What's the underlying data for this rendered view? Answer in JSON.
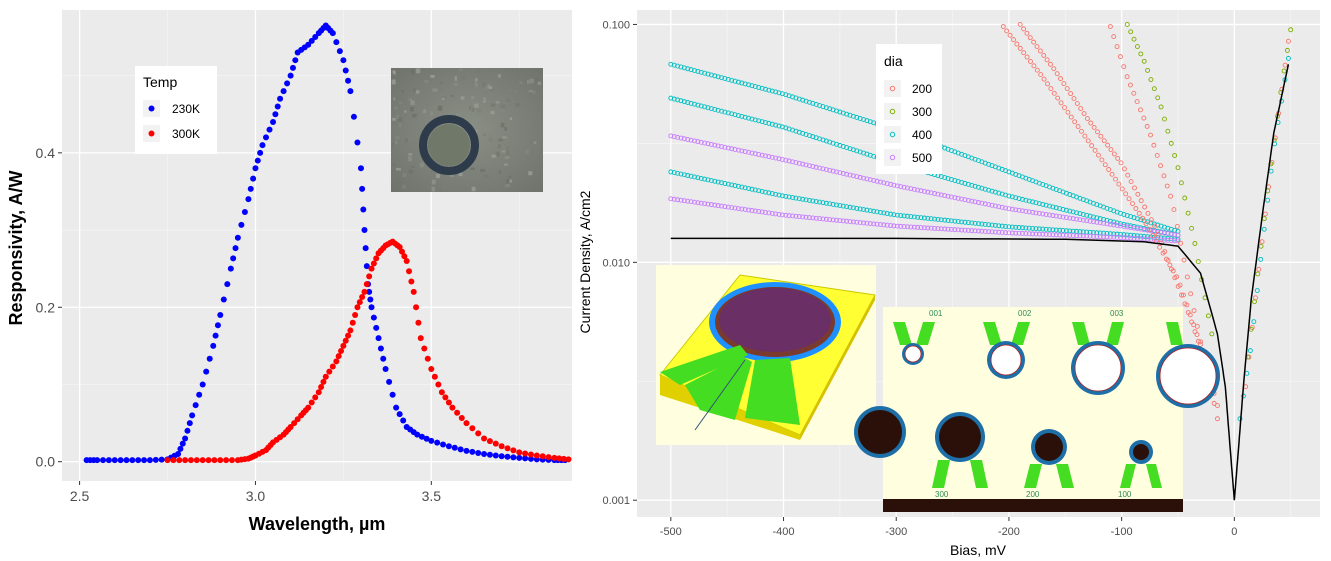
{
  "chart_data": [
    {
      "type": "scatter",
      "xlabel": "Wavelength, µm",
      "ylabel": "Responsivity, A/W",
      "xlim": [
        2.45,
        3.9
      ],
      "ylim": [
        -0.025,
        0.585
      ],
      "x_ticks": [
        2.5,
        3.0,
        3.5
      ],
      "x_tick_labels": [
        "2.5",
        "3.0",
        "3.5"
      ],
      "y_ticks": [
        0.0,
        0.2,
        0.4
      ],
      "y_tick_labels": [
        "0.0",
        "0.2",
        "0.4"
      ],
      "grid": true,
      "legend": {
        "title": "Temp",
        "placement": "top-left, inside plot"
      },
      "series": [
        {
          "name": "230K",
          "color": "#0000ff",
          "points": [
            [
              2.52,
              0.002
            ],
            [
              2.55,
              0.002
            ],
            [
              2.6,
              0.002
            ],
            [
              2.65,
              0.002
            ],
            [
              2.7,
              0.002
            ],
            [
              2.75,
              0.003
            ],
            [
              2.78,
              0.01
            ],
            [
              2.8,
              0.03
            ],
            [
              2.82,
              0.06
            ],
            [
              2.85,
              0.1
            ],
            [
              2.88,
              0.15
            ],
            [
              2.9,
              0.19
            ],
            [
              2.93,
              0.25
            ],
            [
              2.95,
              0.29
            ],
            [
              2.98,
              0.34
            ],
            [
              3.0,
              0.38
            ],
            [
              3.02,
              0.41
            ],
            [
              3.05,
              0.44
            ],
            [
              3.07,
              0.47
            ],
            [
              3.1,
              0.5
            ],
            [
              3.12,
              0.53
            ],
            [
              3.15,
              0.54
            ],
            [
              3.18,
              0.555
            ],
            [
              3.2,
              0.565
            ],
            [
              3.22,
              0.555
            ],
            [
              3.25,
              0.52
            ],
            [
              3.27,
              0.48
            ],
            [
              3.3,
              0.38
            ],
            [
              3.31,
              0.3
            ],
            [
              3.32,
              0.23
            ],
            [
              3.33,
              0.2
            ],
            [
              3.35,
              0.16
            ],
            [
              3.37,
              0.12
            ],
            [
              3.4,
              0.07
            ],
            [
              3.43,
              0.045
            ],
            [
              3.46,
              0.035
            ],
            [
              3.5,
              0.027
            ],
            [
              3.55,
              0.02
            ],
            [
              3.6,
              0.014
            ],
            [
              3.65,
              0.01
            ],
            [
              3.7,
              0.007
            ],
            [
              3.75,
              0.005
            ],
            [
              3.8,
              0.003
            ],
            [
              3.85,
              0.002
            ],
            [
              3.88,
              0.002
            ]
          ]
        },
        {
          "name": "300K",
          "color": "#ff0000",
          "points": [
            [
              2.75,
              0.002
            ],
            [
              2.8,
              0.002
            ],
            [
              2.85,
              0.002
            ],
            [
              2.9,
              0.002
            ],
            [
              2.95,
              0.002
            ],
            [
              2.98,
              0.004
            ],
            [
              3.0,
              0.008
            ],
            [
              3.03,
              0.015
            ],
            [
              3.05,
              0.025
            ],
            [
              3.08,
              0.035
            ],
            [
              3.1,
              0.045
            ],
            [
              3.13,
              0.06
            ],
            [
              3.15,
              0.07
            ],
            [
              3.18,
              0.09
            ],
            [
              3.2,
              0.11
            ],
            [
              3.23,
              0.13
            ],
            [
              3.25,
              0.15
            ],
            [
              3.27,
              0.17
            ],
            [
              3.29,
              0.2
            ],
            [
              3.31,
              0.22
            ],
            [
              3.33,
              0.25
            ],
            [
              3.35,
              0.27
            ],
            [
              3.37,
              0.28
            ],
            [
              3.39,
              0.285
            ],
            [
              3.41,
              0.278
            ],
            [
              3.43,
              0.26
            ],
            [
              3.45,
              0.22
            ],
            [
              3.47,
              0.16
            ],
            [
              3.5,
              0.12
            ],
            [
              3.53,
              0.09
            ],
            [
              3.56,
              0.07
            ],
            [
              3.6,
              0.05
            ],
            [
              3.65,
              0.03
            ],
            [
              3.7,
              0.02
            ],
            [
              3.75,
              0.012
            ],
            [
              3.8,
              0.008
            ],
            [
              3.85,
              0.005
            ],
            [
              3.89,
              0.003
            ]
          ]
        }
      ]
    },
    {
      "type": "scatter",
      "xlabel": "Bias, mV",
      "ylabel": "Current Density, A/cm2",
      "y_scale": "log",
      "xlim": [
        -530,
        76
      ],
      "ylim": [
        0.00085,
        0.115
      ],
      "x_ticks": [
        -500,
        -400,
        -300,
        -200,
        -100,
        0
      ],
      "x_tick_labels": [
        "-500",
        "-400",
        "-300",
        "-200",
        "-100",
        "0"
      ],
      "y_ticks": [
        0.001,
        0.01,
        0.1
      ],
      "y_tick_labels": [
        "0.001",
        "0.010",
        "0.100"
      ],
      "grid": true,
      "legend": {
        "title": "dia",
        "placement": "top-left, inside plot"
      },
      "legend_entries": [
        {
          "name": "200",
          "color": "#f8766d"
        },
        {
          "name": "300",
          "color": "#7cae00"
        },
        {
          "name": "400",
          "color": "#00bfc4"
        },
        {
          "name": "500",
          "color": "#c77cff"
        }
      ],
      "series": [
        {
          "name": "400",
          "color": "#00bfc4",
          "points": [
            [
              -500,
              0.068
            ],
            [
              -400,
              0.051
            ],
            [
              -300,
              0.036
            ],
            [
              -200,
              0.024
            ],
            [
              -100,
              0.016
            ],
            [
              -50,
              0.0135
            ]
          ]
        },
        {
          "name": "400",
          "color": "#00bfc4",
          "points": [
            [
              -500,
              0.049
            ],
            [
              -400,
              0.037
            ],
            [
              -300,
              0.026
            ],
            [
              -200,
              0.019
            ],
            [
              -100,
              0.0145
            ],
            [
              -50,
              0.013
            ]
          ]
        },
        {
          "name": "400",
          "color": "#00bfc4",
          "points": [
            [
              -500,
              0.024
            ],
            [
              -400,
              0.019
            ],
            [
              -300,
              0.0158
            ],
            [
              -200,
              0.0141
            ],
            [
              -100,
              0.0131
            ],
            [
              -50,
              0.0125
            ]
          ]
        },
        {
          "name": "500",
          "color": "#c77cff",
          "points": [
            [
              -500,
              0.034
            ],
            [
              -400,
              0.027
            ],
            [
              -300,
              0.021
            ],
            [
              -200,
              0.0168
            ],
            [
              -100,
              0.0142
            ],
            [
              -50,
              0.013
            ]
          ]
        },
        {
          "name": "500",
          "color": "#c77cff",
          "points": [
            [
              -500,
              0.0185
            ],
            [
              -400,
              0.0158
            ],
            [
              -300,
              0.0142
            ],
            [
              -200,
              0.0133
            ],
            [
              -100,
              0.0127
            ],
            [
              -50,
              0.0123
            ]
          ]
        },
        {
          "name": "200",
          "color": "#f8766d",
          "points": [
            [
              -205,
              0.098
            ],
            [
              -170,
              0.06
            ],
            [
              -140,
              0.038
            ],
            [
              -110,
              0.024
            ],
            [
              -80,
              0.015
            ],
            [
              -50,
              0.0085
            ],
            [
              -30,
              0.0045
            ],
            [
              -15,
              0.0025
            ]
          ]
        },
        {
          "name": "200",
          "color": "#f8766d",
          "points": [
            [
              -190,
              0.1
            ],
            [
              -160,
              0.065
            ],
            [
              -130,
              0.04
            ],
            [
              -100,
              0.026
            ],
            [
              -70,
              0.014
            ],
            [
              -40,
              0.006
            ],
            [
              -20,
              0.0032
            ]
          ]
        },
        {
          "name": "300",
          "color": "#7cae00",
          "points": [
            [
              -95,
              0.1
            ],
            [
              -80,
              0.07
            ],
            [
              -65,
              0.045
            ],
            [
              -50,
              0.025
            ],
            [
              -35,
              0.012
            ],
            [
              -20,
              0.005
            ]
          ]
        },
        {
          "name": "200",
          "color": "#f8766d",
          "points": [
            [
              -110,
              0.098
            ],
            [
              -95,
              0.06
            ],
            [
              -75,
              0.035
            ],
            [
              -55,
              0.018
            ],
            [
              -35,
              0.006
            ],
            [
              -15,
              0.0022
            ]
          ]
        },
        {
          "name": "200",
          "color": "#f8766d",
          "points": [
            [
              10,
              0.003
            ],
            [
              20,
              0.008
            ],
            [
              30,
              0.02
            ],
            [
              40,
              0.045
            ],
            [
              48,
              0.085
            ]
          ]
        },
        {
          "name": "300",
          "color": "#7cae00",
          "points": [
            [
              12,
              0.004
            ],
            [
              22,
              0.01
            ],
            [
              32,
              0.025
            ],
            [
              42,
              0.055
            ],
            [
              50,
              0.095
            ]
          ]
        },
        {
          "name": "400",
          "color": "#00bfc4",
          "points": [
            [
              5,
              0.0022
            ],
            [
              15,
              0.0045
            ],
            [
              25,
              0.012
            ],
            [
              35,
              0.03
            ],
            [
              48,
              0.072
            ]
          ]
        }
      ],
      "fit_line": {
        "color": "#000000",
        "points": [
          [
            -500,
            0.0126
          ],
          [
            -300,
            0.0126
          ],
          [
            -150,
            0.0125
          ],
          [
            -80,
            0.0122
          ],
          [
            -50,
            0.0117
          ],
          [
            -30,
            0.009
          ],
          [
            -15,
            0.005
          ],
          [
            -8,
            0.003
          ],
          [
            -3,
            0.0015
          ],
          [
            0,
            0.001
          ],
          [
            3,
            0.0015
          ],
          [
            8,
            0.003
          ],
          [
            15,
            0.007
          ],
          [
            25,
            0.016
          ],
          [
            35,
            0.035
          ],
          [
            48,
            0.068
          ]
        ]
      }
    }
  ],
  "inset_labels": {
    "top_row": [
      "001",
      "002",
      "003"
    ],
    "bottom_row": [
      "300",
      "200",
      "100"
    ]
  }
}
